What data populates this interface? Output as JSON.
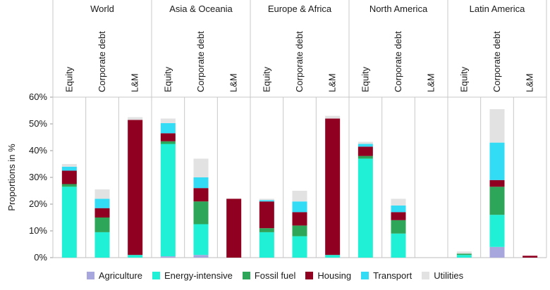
{
  "chart_data": {
    "type": "bar",
    "stacked": true,
    "ylabel": "Proportions in %",
    "ylim": [
      0,
      60
    ],
    "yticks": [
      "0%",
      "10%",
      "20%",
      "30%",
      "40%",
      "50%",
      "60%"
    ],
    "groups": [
      "World",
      "Asia & Oceania",
      "Europe & Africa",
      "North America",
      "Latin America"
    ],
    "categories": [
      "Equity",
      "Corporate debt",
      "L&M"
    ],
    "grid": "vertical separators",
    "legend_position": "bottom",
    "series": [
      {
        "name": "Agriculture",
        "color": "#a7a7de",
        "values": [
          [
            0,
            0,
            0
          ],
          [
            0.5,
            1,
            0
          ],
          [
            0,
            0,
            0
          ],
          [
            0,
            0,
            0
          ],
          [
            0,
            4,
            0
          ]
        ]
      },
      {
        "name": "Energy-intensive",
        "color": "#1ff0d6",
        "values": [
          [
            26.5,
            9.5,
            1
          ],
          [
            42,
            11.5,
            0
          ],
          [
            9.5,
            8,
            1
          ],
          [
            37,
            9,
            0
          ],
          [
            1,
            12,
            0
          ]
        ]
      },
      {
        "name": "Fossil fuel",
        "color": "#2ea65a",
        "values": [
          [
            1,
            5.5,
            0
          ],
          [
            1,
            8.5,
            0
          ],
          [
            1.5,
            4,
            0
          ],
          [
            1,
            5,
            0
          ],
          [
            0.5,
            10.5,
            0
          ]
        ]
      },
      {
        "name": "Housing",
        "color": "#8f0021",
        "values": [
          [
            5,
            3.5,
            50.5
          ],
          [
            3,
            5,
            22
          ],
          [
            10,
            5,
            51
          ],
          [
            3.5,
            3,
            0
          ],
          [
            0,
            2.5,
            0.7
          ]
        ]
      },
      {
        "name": "Transport",
        "color": "#33dcf5",
        "values": [
          [
            1.5,
            3.5,
            0
          ],
          [
            3.8,
            4,
            0
          ],
          [
            0.5,
            4,
            0
          ],
          [
            1,
            2.5,
            0
          ],
          [
            0,
            14,
            0
          ]
        ]
      },
      {
        "name": "Utilities",
        "color": "#e2e2e2",
        "values": [
          [
            1,
            3.5,
            1
          ],
          [
            1.7,
            7,
            0
          ],
          [
            0.5,
            4,
            1
          ],
          [
            0.8,
            2.5,
            0
          ],
          [
            0.8,
            12.5,
            0
          ]
        ]
      }
    ]
  }
}
